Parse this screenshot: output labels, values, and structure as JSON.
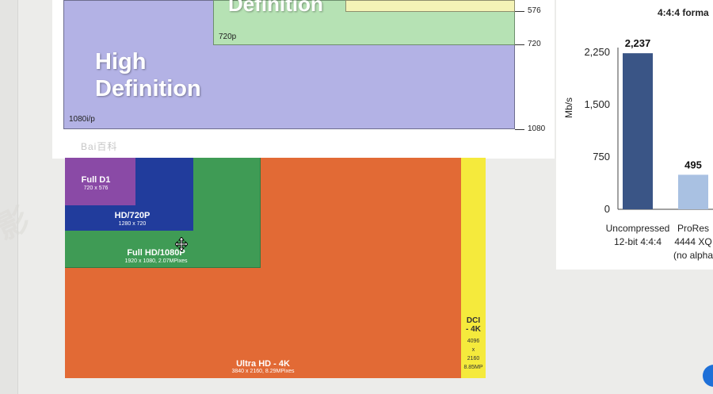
{
  "top_chart": {
    "title_fragment": "Definition",
    "label_1080": "1080i/p",
    "label_720": "720p",
    "main_title_line1": "High",
    "main_title_line2": "Definition",
    "ticks": [
      "576",
      "720",
      "1080"
    ],
    "watermark": "Bai百科"
  },
  "bar_chart": {
    "title": "4:4:4 forma",
    "ylabel": "Mb/s",
    "yticks": [
      "2,250",
      "1,500",
      "750",
      "0"
    ],
    "bars": [
      {
        "value_label": "2,237",
        "line1": "Uncompressed",
        "line2": "12-bit 4:4:4",
        "line3": "",
        "color": "#3a5586"
      },
      {
        "value_label": "495",
        "line1": "ProRes",
        "line2": "4444 XQ",
        "line3": "(no alpha",
        "color": "#a9c1e2"
      }
    ]
  },
  "chart_data": {
    "type": "bar",
    "title": "4:4:4 forma",
    "ylabel": "Mb/s",
    "ylim": [
      0,
      2250
    ],
    "categories": [
      "Uncompressed 12-bit 4:4:4",
      "ProRes 4444 XQ (no alpha"
    ],
    "values": [
      2237,
      495
    ],
    "grid": false
  },
  "resolution_chart": {
    "full_d1": {
      "name": "Full D1",
      "dims": "720 x 576"
    },
    "hd_720": {
      "name": "HD/720P",
      "dims": "1280 x 720"
    },
    "full_hd": {
      "name": "Full HD/1080P",
      "dims": "1920 x 1080, 2.07MPixes"
    },
    "uhd": {
      "name": "Ultra HD - 4K",
      "dims": "3840 x 2160, 8.29MPixes"
    },
    "dci": {
      "name_line1": "DCI",
      "name_line2": "- 4K",
      "dims_line1": "4096",
      "dims_line2": "x",
      "dims_line3": "2160",
      "dims_line4": "8.85MP"
    }
  },
  "colors": {
    "d1": "#8a4aa6",
    "hd720": "#213c9c",
    "fullhd": "#3f9b55",
    "uhd": "#e26a35",
    "dci": "#f5ea3c",
    "bar_dark": "#3a5586",
    "bar_light": "#a9c1e2"
  }
}
